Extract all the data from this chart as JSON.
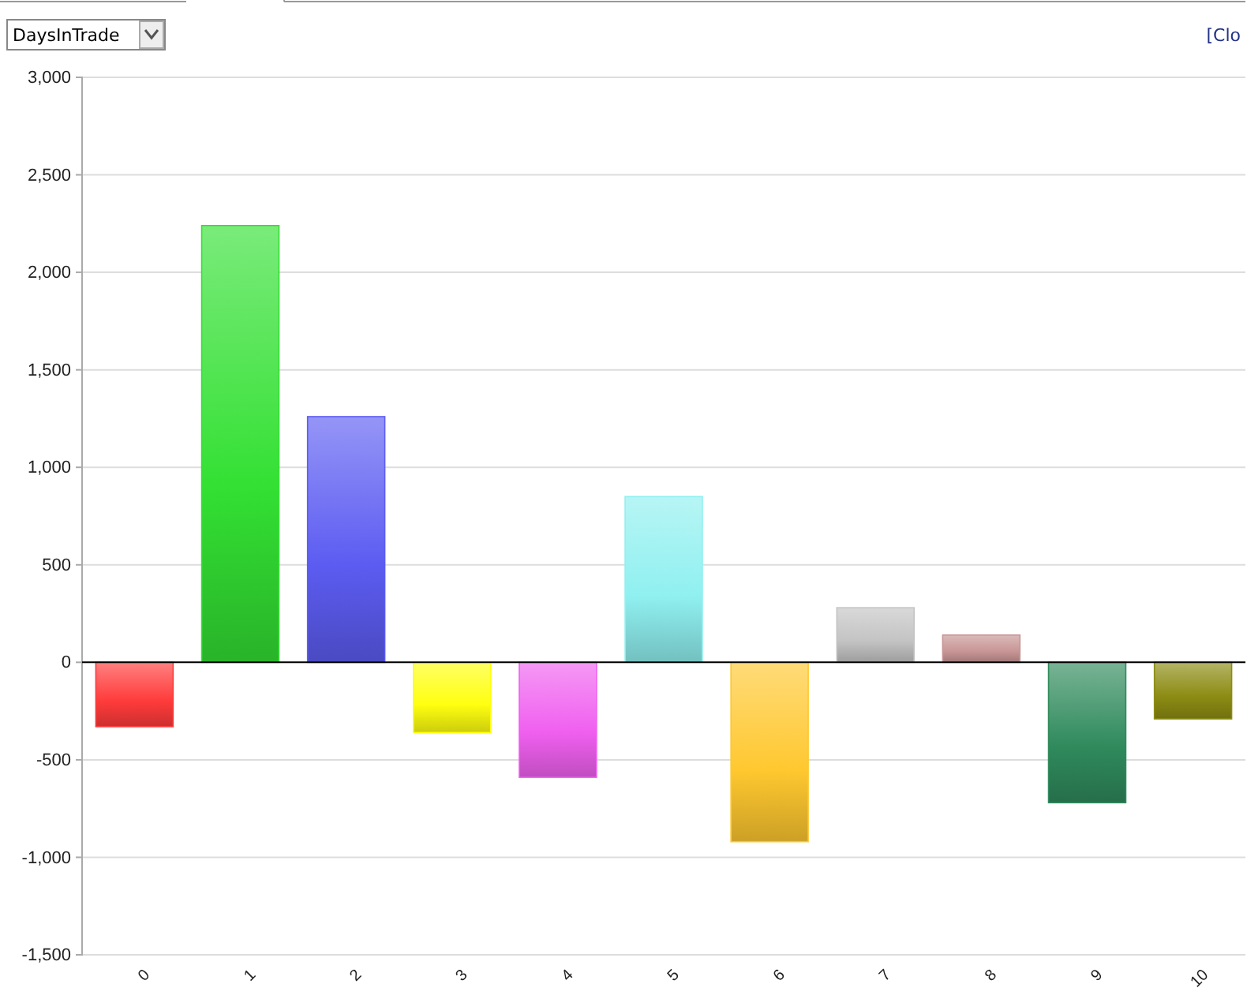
{
  "chart_data": {
    "type": "bar",
    "categories": [
      "0",
      "1",
      "2",
      "3",
      "4",
      "5",
      "6",
      "7",
      "8",
      "9",
      "10"
    ],
    "values": [
      -330,
      2240,
      1260,
      -360,
      -590,
      850,
      -920,
      280,
      140,
      -720,
      -290
    ],
    "colors": [
      "#ff3b3b",
      "#33e033",
      "#5c5cf2",
      "#ffff10",
      "#f060f0",
      "#90f0f0",
      "#ffc830",
      "#c4c4c4",
      "#c89595",
      "#2f8a5c",
      "#8c8c14"
    ],
    "ylim": [
      -1500,
      3000
    ],
    "yticks": [
      {
        "value": -1500,
        "label": "-1,500"
      },
      {
        "value": -1000,
        "label": "-1,000"
      },
      {
        "value": -500,
        "label": "-500"
      },
      0,
      500,
      {
        "value": 1000,
        "label": "1,000"
      },
      {
        "value": 1500,
        "label": "1,500"
      },
      {
        "value": 2000,
        "label": "2,000"
      },
      {
        "value": 2500,
        "label": "2,500"
      },
      {
        "value": 3000,
        "label": "3,000"
      }
    ],
    "grid": "y",
    "annotations": [
      "DaysInTrade",
      "[Clo"
    ]
  }
}
